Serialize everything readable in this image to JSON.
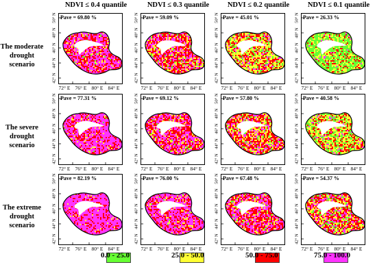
{
  "columns": [
    "NDVI ≤ 0.4 quantile",
    "NDVI ≤ 0.3 quantile",
    "NDVI ≤ 0.2 quantile",
    "NDVI ≤ 0.1 quantile"
  ],
  "rows": [
    {
      "label_line1": "The moderate",
      "label_line2": "drought scenario",
      "pave": [
        "Pave = 69.80 %",
        "Pave = 59.09 %",
        "Pave = 45.01 %",
        "Pave = 26.33 %"
      ]
    },
    {
      "label_line1": "The severe",
      "label_line2": "drought scenario",
      "pave": [
        "Pave = 77.31 %",
        "Pave = 69.12 %",
        "Pave = 57.80 %",
        "Pave = 40.58 %"
      ]
    },
    {
      "label_line1": "The extreme",
      "label_line2": "drought scenario",
      "pave": [
        "Pave = 82.19 %",
        "Pave = 76.00 %",
        "Pave = 67.48 %",
        "Pave = 54.37 %"
      ]
    }
  ],
  "y_ticks": [
    "50° N",
    "48° N",
    "46° N",
    "44° N",
    "42° N"
  ],
  "x_ticks": [
    "72° E",
    "76° E",
    "80° E",
    "84° E"
  ],
  "legend": [
    {
      "label": "0.0 - 25.0",
      "color": "#66ff33"
    },
    {
      "label": "25.0 - 50.0",
      "color": "#ffff33"
    },
    {
      "label": "50.0 - 75.0",
      "color": "#ff0000"
    },
    {
      "label": "75.0 - 100.0",
      "color": "#ff33ff"
    }
  ],
  "class_mix_by_panel": [
    [
      [
        0.02,
        0.1,
        0.35,
        0.53
      ],
      [
        0.05,
        0.22,
        0.45,
        0.28
      ],
      [
        0.18,
        0.4,
        0.32,
        0.1
      ],
      [
        0.58,
        0.28,
        0.12,
        0.02
      ]
    ],
    [
      [
        0.01,
        0.07,
        0.28,
        0.64
      ],
      [
        0.03,
        0.13,
        0.4,
        0.44
      ],
      [
        0.08,
        0.27,
        0.45,
        0.2
      ],
      [
        0.3,
        0.38,
        0.26,
        0.06
      ]
    ],
    [
      [
        0.0,
        0.04,
        0.2,
        0.76
      ],
      [
        0.01,
        0.08,
        0.3,
        0.61
      ],
      [
        0.04,
        0.16,
        0.42,
        0.38
      ],
      [
        0.12,
        0.3,
        0.4,
        0.18
      ]
    ]
  ]
}
